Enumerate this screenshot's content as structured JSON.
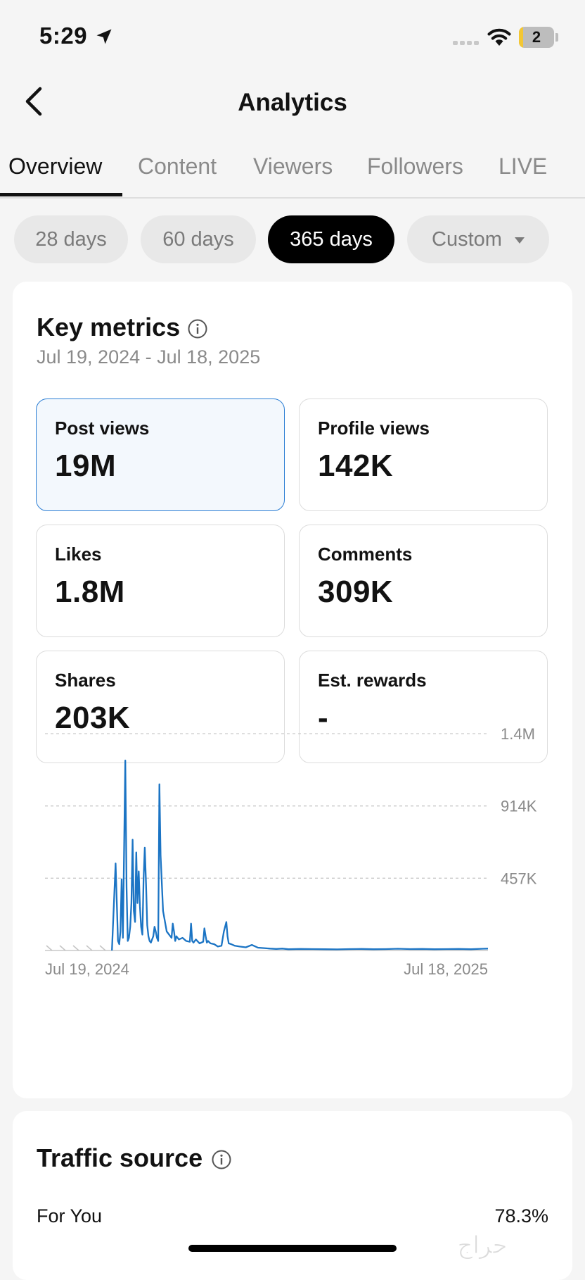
{
  "status_bar": {
    "time": "5:29",
    "battery": "2",
    "icons": [
      "location-arrow-icon",
      "signal-icon",
      "wifi-icon",
      "battery-icon"
    ]
  },
  "header": {
    "title": "Analytics",
    "back_icon": "chevron-left-icon"
  },
  "tabs": [
    {
      "label": "Overview",
      "active": true
    },
    {
      "label": "Content",
      "active": false
    },
    {
      "label": "Viewers",
      "active": false
    },
    {
      "label": "Followers",
      "active": false
    },
    {
      "label": "LIVE",
      "active": false
    }
  ],
  "periods": [
    {
      "label": "28 days",
      "selected": false
    },
    {
      "label": "60 days",
      "selected": false
    },
    {
      "label": "365 days",
      "selected": true
    },
    {
      "label": "Custom",
      "selected": false,
      "has_dropdown": true
    }
  ],
  "key_metrics": {
    "title": "Key metrics",
    "date_range": "Jul 19, 2024 - Jul 18, 2025",
    "metrics": [
      {
        "label": "Post views",
        "value": "19M",
        "selected": true
      },
      {
        "label": "Profile views",
        "value": "142K",
        "selected": false
      },
      {
        "label": "Likes",
        "value": "1.8M",
        "selected": false
      },
      {
        "label": "Comments",
        "value": "309K",
        "selected": false
      },
      {
        "label": "Shares",
        "value": "203K",
        "selected": false
      },
      {
        "label": "Est. rewards",
        "value": "-",
        "selected": false
      }
    ]
  },
  "chart_data": {
    "type": "line",
    "x_start": "Jul 19, 2024",
    "x_end": "Jul 18, 2025",
    "y_ticks": [
      "1.4M",
      "914K",
      "457K"
    ],
    "ylim": [
      0,
      1370000
    ],
    "grid": true,
    "no_data_until_day": 55,
    "series": [
      {
        "color": "#1b74c4",
        "x": [
          55,
          58,
          60,
          61,
          62,
          63,
          64,
          66,
          67,
          68,
          69,
          70,
          71,
          72,
          73,
          74,
          75,
          76,
          77,
          78,
          79,
          80,
          81,
          82,
          83,
          84,
          85,
          86,
          87,
          88,
          89,
          90,
          91,
          92,
          93,
          94,
          95,
          97,
          100,
          103,
          104,
          105,
          106,
          107,
          108,
          110,
          113,
          116,
          119,
          120,
          121,
          122,
          124,
          127,
          130,
          131,
          132,
          133,
          134,
          136,
          139,
          142,
          145,
          147,
          149,
          150,
          151,
          153,
          156,
          160,
          165,
          170,
          175,
          180,
          185,
          190,
          195,
          200,
          210,
          220,
          230,
          240,
          250,
          260,
          270,
          280,
          290,
          300,
          310,
          320,
          330,
          340,
          350,
          360,
          364
        ],
        "y": [
          0,
          550000,
          60000,
          40000,
          120000,
          450000,
          80000,
          1200000,
          400000,
          60000,
          80000,
          150000,
          300000,
          700000,
          250000,
          180000,
          620000,
          300000,
          500000,
          280000,
          150000,
          100000,
          450000,
          650000,
          420000,
          160000,
          90000,
          60000,
          50000,
          70000,
          90000,
          150000,
          120000,
          80000,
          60000,
          1050000,
          600000,
          250000,
          120000,
          90000,
          80000,
          170000,
          120000,
          60000,
          90000,
          70000,
          80000,
          60000,
          55000,
          170000,
          60000,
          50000,
          70000,
          45000,
          55000,
          140000,
          90000,
          50000,
          60000,
          45000,
          40000,
          25000,
          30000,
          120000,
          180000,
          90000,
          45000,
          40000,
          30000,
          25000,
          20000,
          35000,
          18000,
          15000,
          12000,
          10000,
          12000,
          8000,
          10000,
          9000,
          8000,
          7000,
          9000,
          10000,
          8000,
          9000,
          11000,
          9000,
          10000,
          8000,
          9000,
          10000,
          8000,
          11000,
          12000
        ]
      }
    ]
  },
  "traffic_source": {
    "title": "Traffic source",
    "rows": [
      {
        "source": "For You",
        "percent": "78.3%"
      }
    ]
  },
  "watermark_text": "حراج"
}
